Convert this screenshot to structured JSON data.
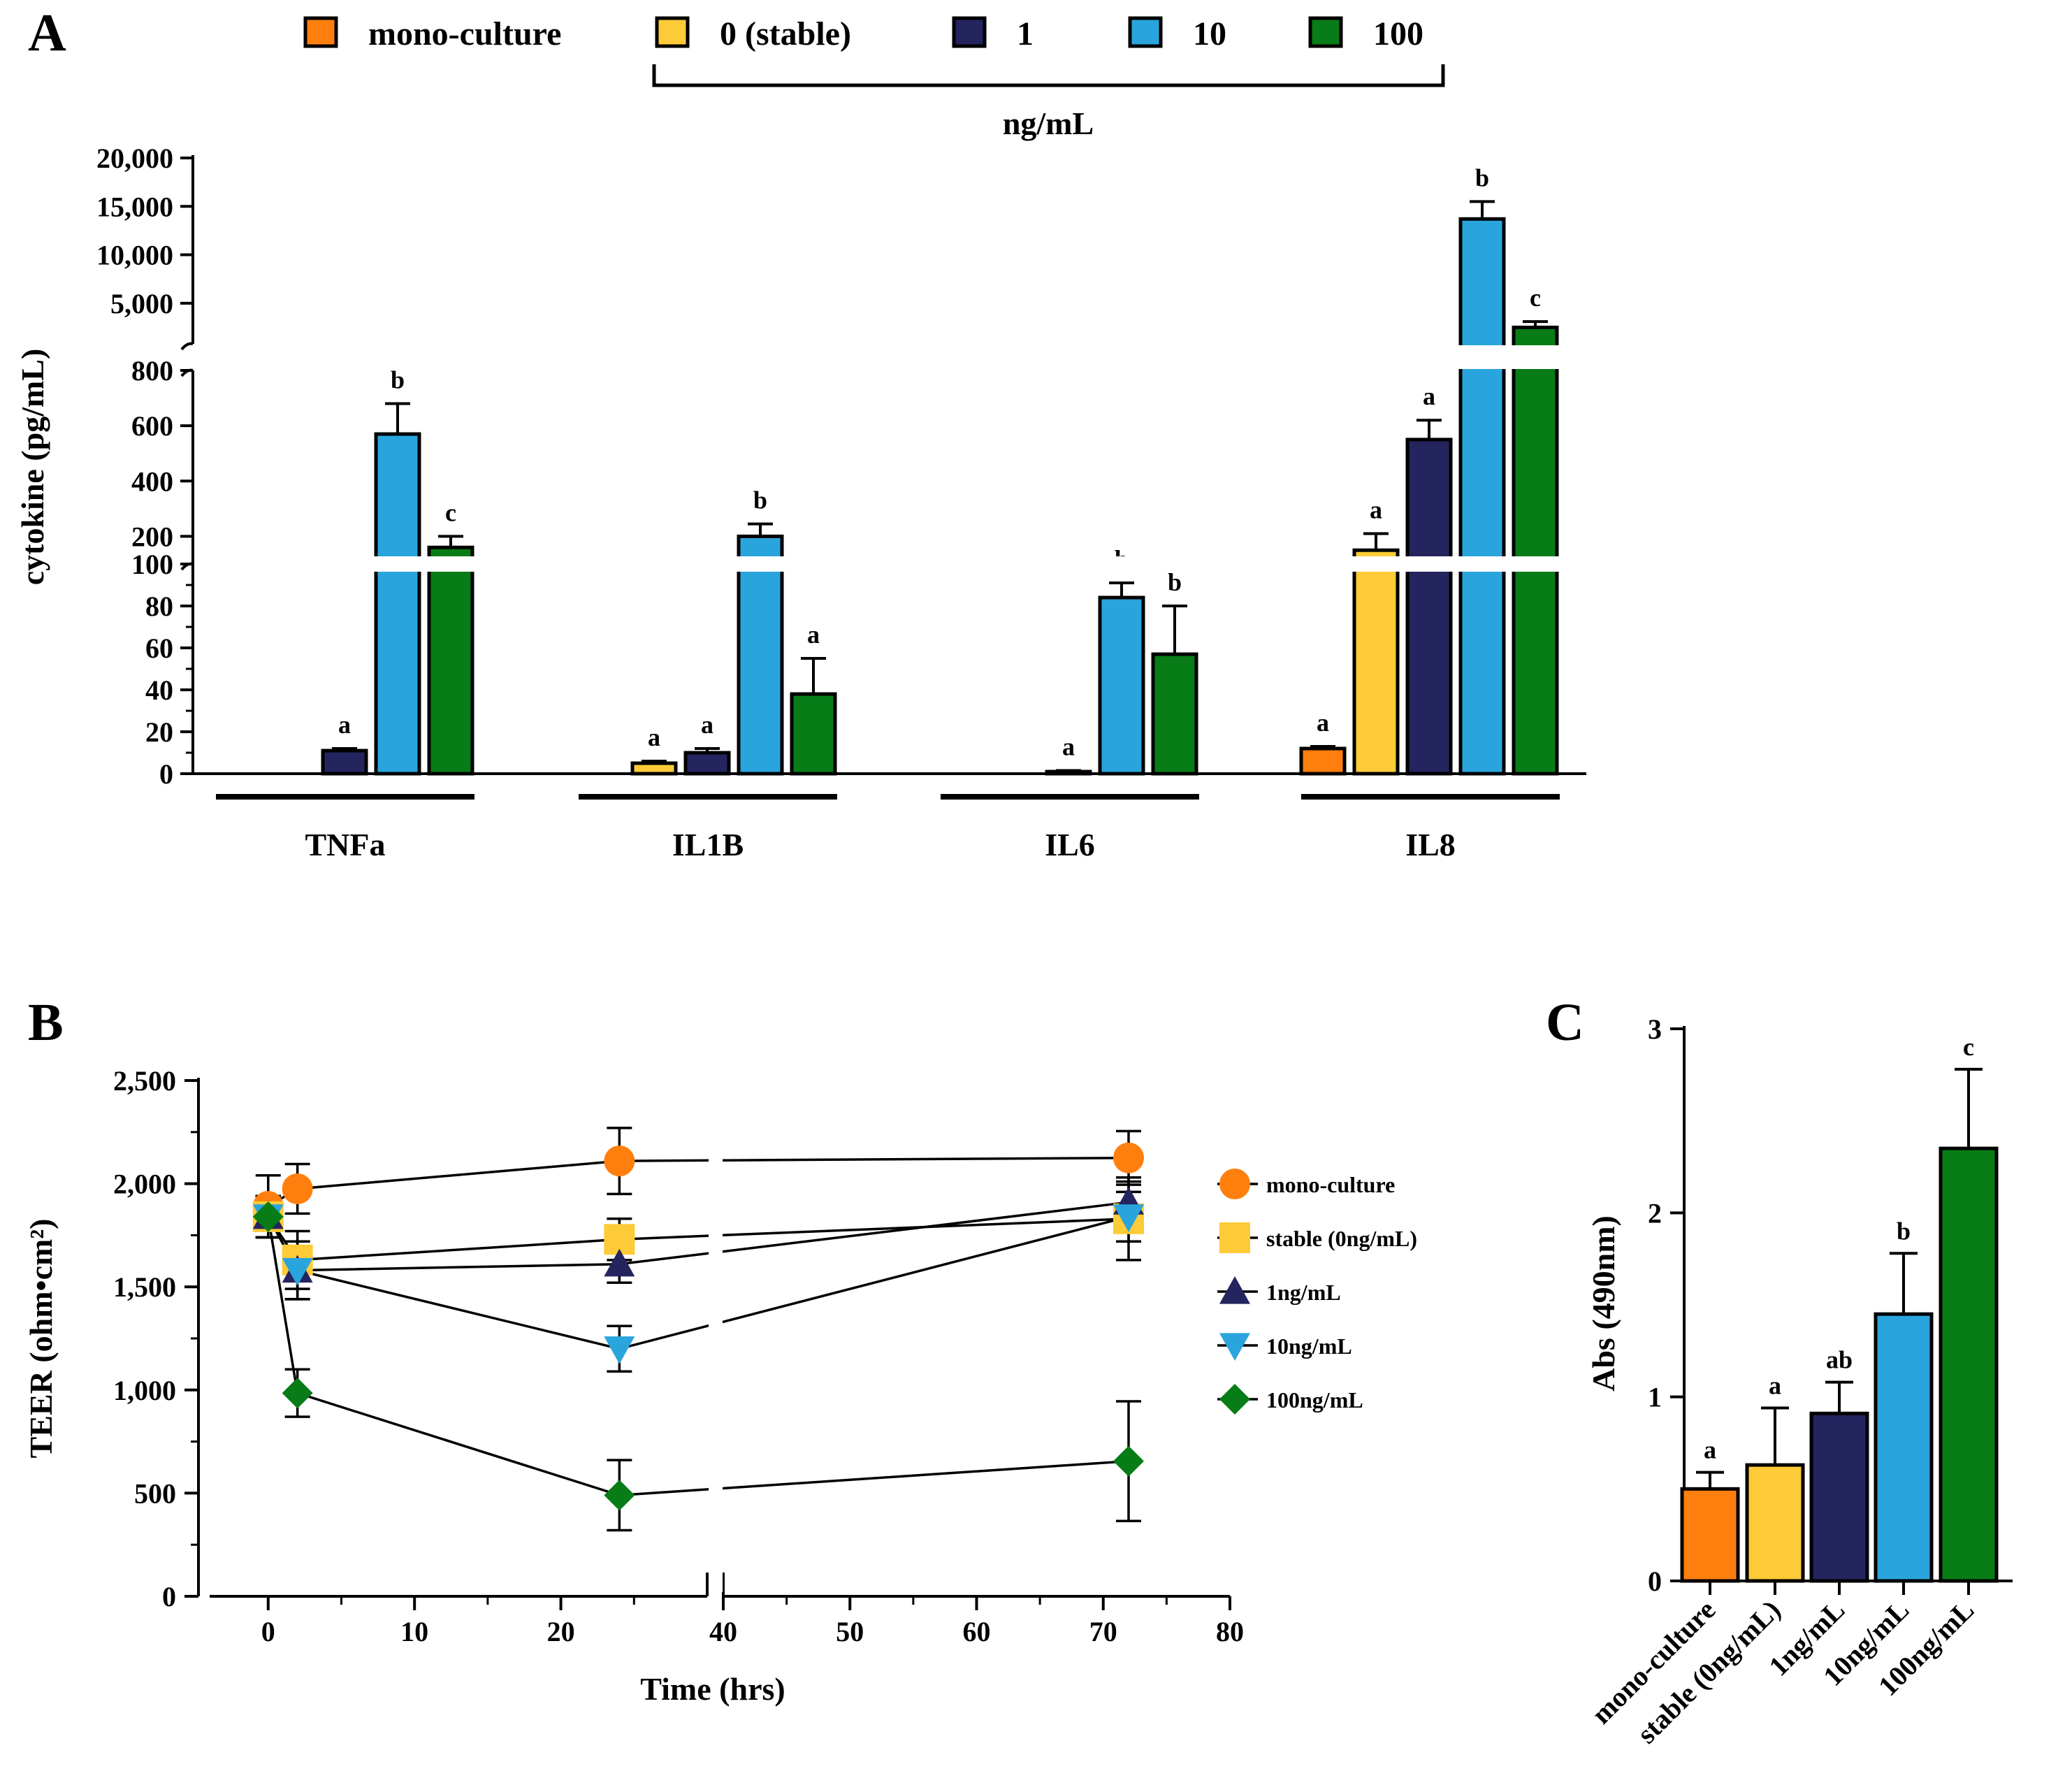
{
  "colors": {
    "mono-culture": "#ff7f0e",
    "stable": "#fdcb37",
    "1": "#24245e",
    "10": "#2aa4dd",
    "100": "#077c17",
    "outline": "#000000"
  },
  "chart_data": [
    {
      "panel": "A",
      "type": "bar",
      "ylabel": "cytokine (pg/mL)",
      "y_segments": [
        {
          "range": [
            0,
            100
          ],
          "ticks": [
            "0",
            "20",
            "40",
            "60",
            "80",
            "100"
          ]
        },
        {
          "range": [
            100,
            800
          ],
          "ticks": [
            "200",
            "400",
            "600",
            "800"
          ]
        },
        {
          "range": [
            800,
            20000
          ],
          "ticks": [
            "5,000",
            "10,000",
            "15,000",
            "20,000"
          ]
        }
      ],
      "legend": {
        "entries": [
          "mono-culture",
          "0 (stable)",
          "1",
          "10",
          "100"
        ],
        "bracket_label": "ng/mL"
      },
      "categories": [
        "TNFa",
        "IL1B",
        "IL6",
        "IL8"
      ],
      "series": [
        {
          "name": "mono-culture",
          "values": [
            0,
            0,
            0,
            12
          ],
          "errors": [
            0,
            0,
            0,
            1
          ],
          "sig": [
            null,
            null,
            null,
            "a"
          ]
        },
        {
          "name": "0 (stable)",
          "values": [
            0,
            5,
            0,
            150
          ],
          "errors": [
            0,
            1,
            0,
            60
          ],
          "sig": [
            null,
            "a",
            null,
            "a"
          ]
        },
        {
          "name": "1",
          "values": [
            11,
            10,
            1,
            550
          ],
          "errors": [
            1,
            2,
            0.5,
            70
          ],
          "sig": [
            "a",
            "a",
            "a",
            "a"
          ]
        },
        {
          "name": "10",
          "values": [
            570,
            200,
            84,
            13700
          ],
          "errors": [
            110,
            45,
            7,
            1800
          ],
          "sig": [
            "b",
            "b",
            "b",
            "b"
          ]
        },
        {
          "name": "100",
          "values": [
            160,
            38,
            57,
            2500
          ],
          "errors": [
            40,
            17,
            23,
            600
          ],
          "sig": [
            "c",
            "a",
            "b",
            "c"
          ]
        }
      ]
    },
    {
      "panel": "B",
      "type": "line",
      "xlabel": "Time (hrs)",
      "ylabel": "TEER (ohm•cm²)",
      "x_segments": [
        {
          "range": [
            -4,
            30
          ],
          "ticks": [
            "0",
            "10",
            "20"
          ]
        },
        {
          "range": [
            40,
            80
          ],
          "ticks": [
            "40",
            "50",
            "60",
            "70",
            "80"
          ]
        }
      ],
      "ylim": [
        0,
        2500
      ],
      "yticks": [
        "0",
        "500",
        "1,000",
        "1,500",
        "2,000",
        "2,500"
      ],
      "x": [
        0,
        2,
        24,
        72
      ],
      "series": [
        {
          "name": "mono-culture",
          "marker": "circle",
          "values": [
            1890,
            1975,
            2110,
            2125
          ],
          "errors": [
            150,
            120,
            160,
            130
          ]
        },
        {
          "name": "stable (0ng/mL)",
          "marker": "square",
          "values": [
            1840,
            1630,
            1730,
            1830
          ],
          "errors": [
            100,
            140,
            100,
            200
          ]
        },
        {
          "name": "1ng/mL",
          "marker": "triangle-up",
          "values": [
            1840,
            1580,
            1610,
            1910
          ],
          "errors": [
            100,
            140,
            90,
            100
          ]
        },
        {
          "name": "10ng/mL",
          "marker": "triangle-down",
          "values": [
            1840,
            1580,
            1200,
            1840
          ],
          "errors": [
            100,
            140,
            110,
            120
          ]
        },
        {
          "name": "100ng/mL",
          "marker": "diamond",
          "values": [
            1840,
            985,
            490,
            655
          ],
          "errors": [
            100,
            115,
            170,
            290
          ]
        }
      ]
    },
    {
      "panel": "C",
      "type": "bar",
      "ylabel": "Abs (490nm)",
      "ylim": [
        0,
        3
      ],
      "yticks": [
        "0",
        "1",
        "2",
        "3"
      ],
      "categories": [
        "mono-culture",
        "stable (0ng/mL)",
        "1ng/mL",
        "10ng/mL",
        "100ng/mL"
      ],
      "values": [
        0.5,
        0.63,
        0.91,
        1.45,
        2.35
      ],
      "errors": [
        0.09,
        0.31,
        0.17,
        0.33,
        0.43
      ],
      "sig": [
        "a",
        "a",
        "ab",
        "b",
        "c"
      ]
    }
  ]
}
